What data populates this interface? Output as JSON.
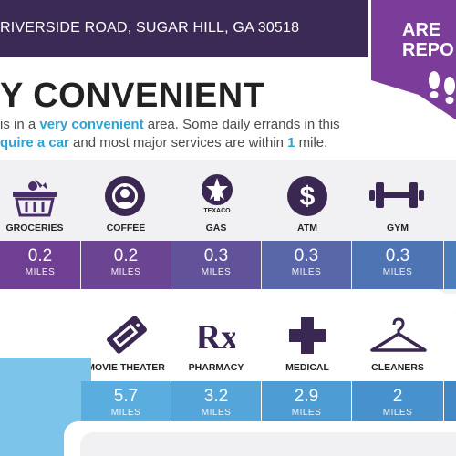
{
  "header": {
    "address": "RIVERSIDE ROAD, SUGAR HILL, GA 30518",
    "bg_color": "#3b2a55"
  },
  "badge": {
    "line1": "ARE",
    "line2": "REPO",
    "color": "#7b3c9a",
    "icon": "footprints-icon"
  },
  "headline": "Y CONVENIENT",
  "intro": {
    "part1": "is in a ",
    "highlight1": "very convenient",
    "part2": " area. Some daily errands in this",
    "highlight2": "quire a car",
    "part3": " and most major services are within ",
    "highlight3": "1",
    "part4": " mile."
  },
  "services_row1": [
    {
      "label": "GROCERIES",
      "icon": "grocery-basket-icon",
      "distance": "0.2",
      "unit": "MILES",
      "color": "#6f3f93"
    },
    {
      "label": "COFFEE",
      "icon": "starbucks-logo-icon",
      "distance": "0.2",
      "unit": "MILES",
      "color": "#6b4592"
    },
    {
      "label": "GAS",
      "icon": "texaco-logo-icon",
      "distance": "0.3",
      "unit": "MILES",
      "color": "#61529a"
    },
    {
      "label": "ATM",
      "icon": "dollar-icon",
      "distance": "0.3",
      "unit": "MILES",
      "color": "#5966a8"
    },
    {
      "label": "GYM",
      "icon": "dumbbell-icon",
      "distance": "0.3",
      "unit": "MILES",
      "color": "#4f74b4"
    }
  ],
  "texaco_text": "TEXACO",
  "services_row2": [
    {
      "label": "MOVIE THEATER",
      "icon": "ticket-icon",
      "distance": "5.7",
      "unit": "MILES",
      "color": "#5aaedf"
    },
    {
      "label": "PHARMACY",
      "icon": "rx-icon",
      "distance": "3.2",
      "unit": "MILES",
      "color": "#54a5da"
    },
    {
      "label": "MEDICAL",
      "icon": "medical-cross-icon",
      "distance": "2.9",
      "unit": "MILES",
      "color": "#4d9cd4"
    },
    {
      "label": "CLEANERS",
      "icon": "hanger-icon",
      "distance": "2",
      "unit": "MILES",
      "color": "#4792cd"
    }
  ],
  "rx_text": "Rx"
}
